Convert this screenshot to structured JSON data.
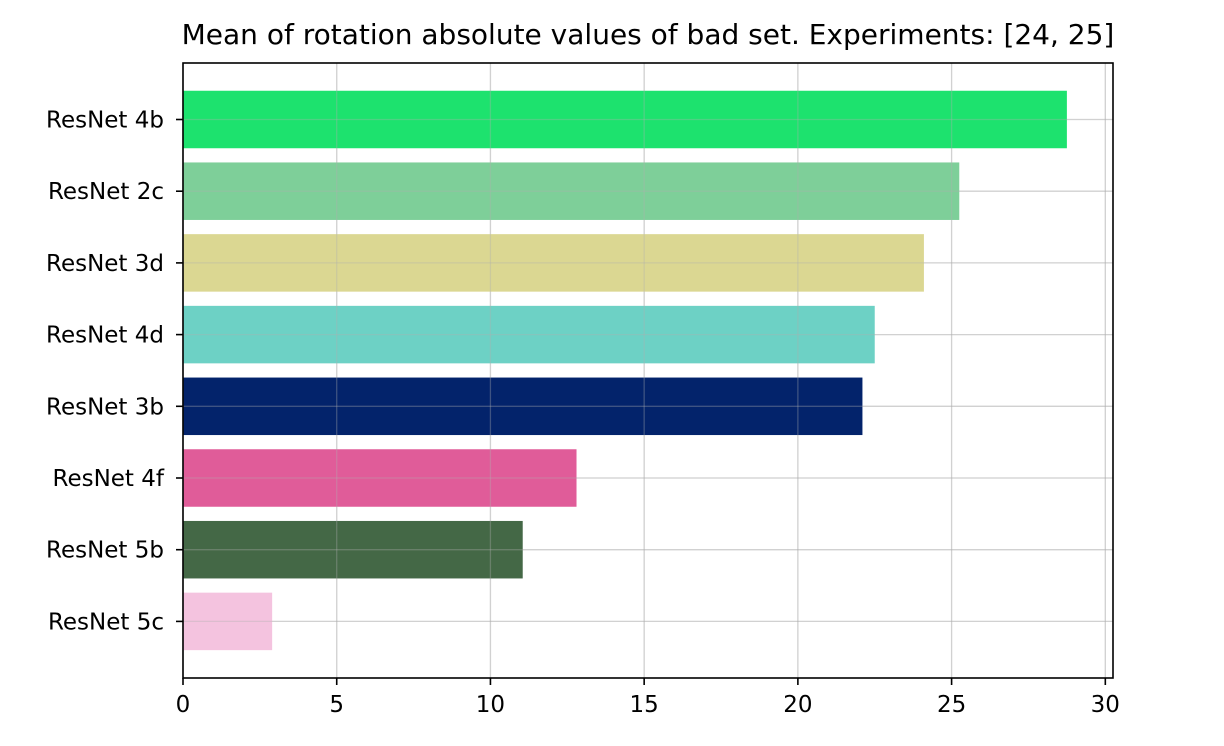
{
  "chart_data": {
    "type": "bar",
    "orientation": "horizontal",
    "title": "Mean of rotation absolute values of bad set. Experiments: [24, 25]",
    "xlabel": "",
    "ylabel": "",
    "xlim": [
      0,
      30.25
    ],
    "x_ticks": [
      0,
      5,
      10,
      15,
      20,
      25,
      30
    ],
    "grid": true,
    "categories": [
      "ResNet 4b",
      "ResNet 2c",
      "ResNet 3d",
      "ResNet 4d",
      "ResNet 3b",
      "ResNet 4f",
      "ResNet 5b",
      "ResNet 5c"
    ],
    "values": [
      28.75,
      25.25,
      24.1,
      22.5,
      22.1,
      12.8,
      11.05,
      2.9
    ],
    "colors": [
      "#1de26e",
      "#7ecf99",
      "#dbd792",
      "#6dd1c5",
      "#03236b",
      "#e05c99",
      "#446846",
      "#f4c3df"
    ]
  }
}
